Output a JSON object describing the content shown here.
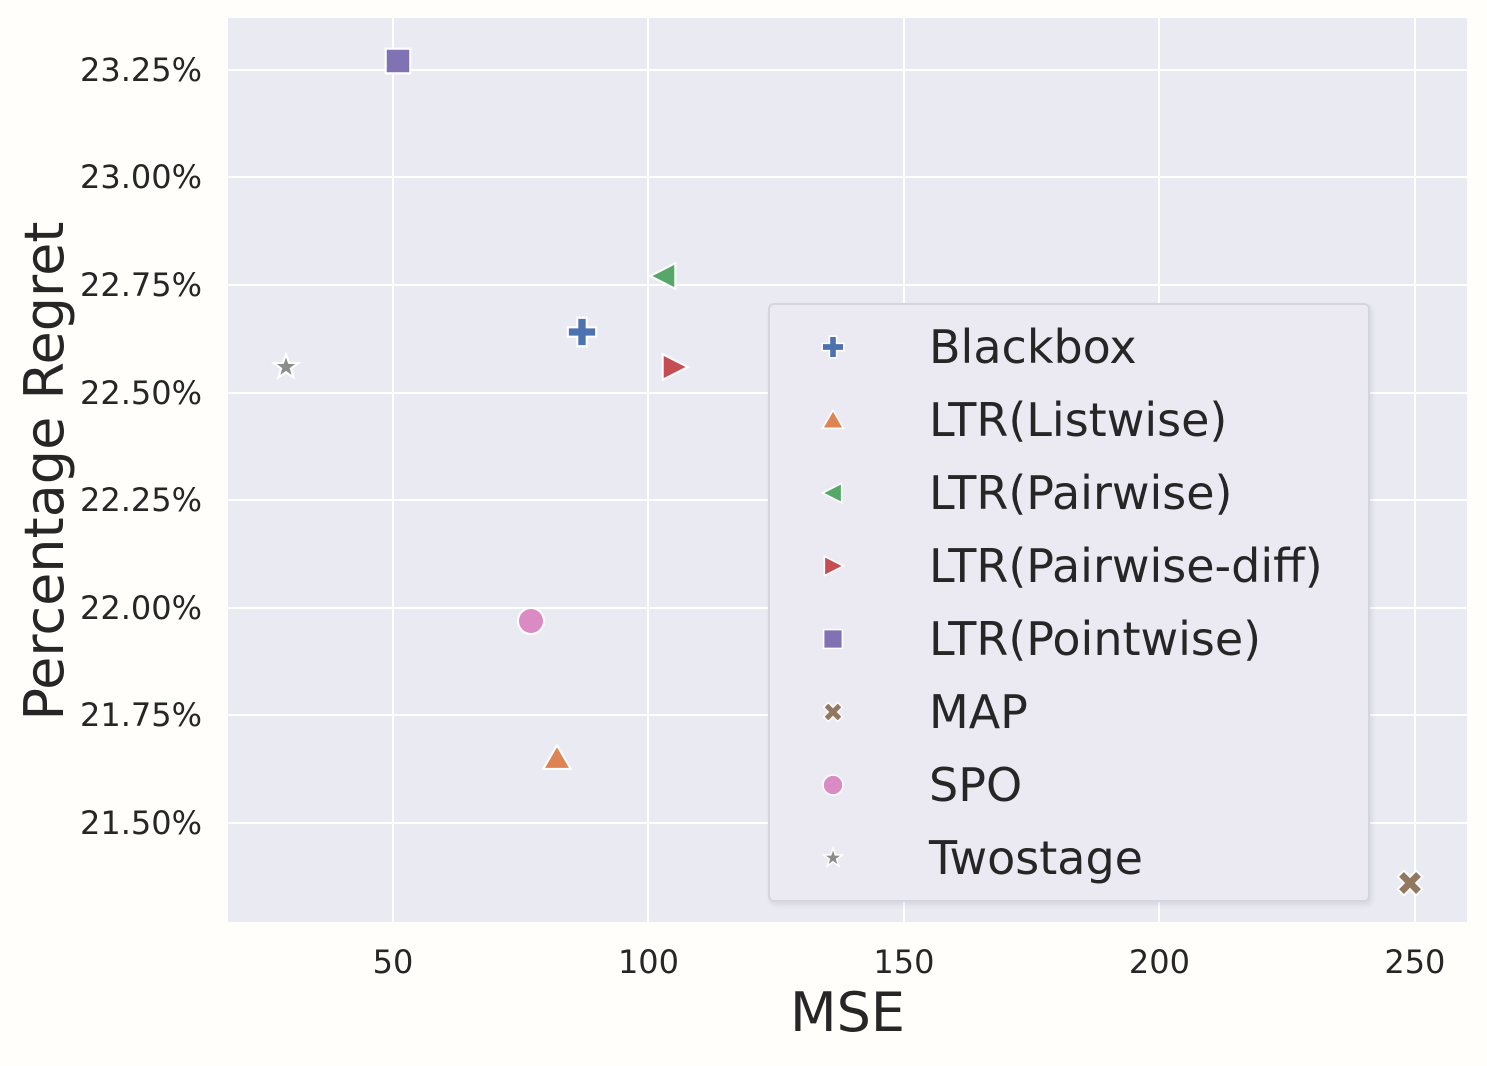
{
  "chart_data": {
    "type": "scatter",
    "title": "",
    "xlabel": "MSE",
    "ylabel": "Percentage Regret",
    "xlim": [
      17.7,
      260.2
    ],
    "ylim": [
      21.27,
      23.37
    ],
    "grid": true,
    "legend_position": "center-right",
    "x_ticks": [
      {
        "value": 50,
        "label": "50"
      },
      {
        "value": 100,
        "label": "100"
      },
      {
        "value": 150,
        "label": "150"
      },
      {
        "value": 200,
        "label": "200"
      },
      {
        "value": 250,
        "label": "250"
      }
    ],
    "y_ticks": [
      {
        "value": 23.25,
        "label": "23.25%"
      },
      {
        "value": 23.0,
        "label": "23.00%"
      },
      {
        "value": 22.75,
        "label": "22.75%"
      },
      {
        "value": 22.5,
        "label": "22.50%"
      },
      {
        "value": 22.25,
        "label": "22.25%"
      },
      {
        "value": 22.0,
        "label": "22.00%"
      },
      {
        "value": 21.75,
        "label": "21.75%"
      },
      {
        "value": 21.5,
        "label": "21.50%"
      }
    ],
    "series": [
      {
        "name": "Blackbox",
        "marker": "plus-icon",
        "color": "#4C72B0",
        "points": [
          {
            "x": 87,
            "y": 22.64
          }
        ]
      },
      {
        "name": "LTR(Listwise)",
        "marker": "triangle-up-icon",
        "color": "#DD8452",
        "points": [
          {
            "x": 82,
            "y": 21.65
          }
        ]
      },
      {
        "name": "LTR(Pairwise)",
        "marker": "triangle-left-icon",
        "color": "#55A868",
        "points": [
          {
            "x": 103,
            "y": 22.77
          }
        ]
      },
      {
        "name": "LTR(Pairwise-diff)",
        "marker": "triangle-right-icon",
        "color": "#C44E52",
        "points": [
          {
            "x": 105,
            "y": 22.56
          }
        ]
      },
      {
        "name": "LTR(Pointwise)",
        "marker": "square-icon",
        "color": "#8172B3",
        "points": [
          {
            "x": 51,
            "y": 23.27
          }
        ]
      },
      {
        "name": "MAP",
        "marker": "x-cross-icon",
        "color": "#937860",
        "points": [
          {
            "x": 249,
            "y": 21.36
          }
        ]
      },
      {
        "name": "SPO",
        "marker": "circle-icon",
        "color": "#DA8BC3",
        "points": [
          {
            "x": 77,
            "y": 21.97
          }
        ]
      },
      {
        "name": "Twostage",
        "marker": "star-icon",
        "color": "#8C8C8C",
        "points": [
          {
            "x": 29,
            "y": 22.56
          }
        ]
      }
    ],
    "colors": {
      "plot_background": "#eaeaf2",
      "figure_background": "#fffefa",
      "gridline": "#ffffff",
      "text": "#262626",
      "legend_background": "#ebeaf2",
      "legend_border": "#d6d4e0",
      "marker_edge": "#ffffff"
    }
  }
}
